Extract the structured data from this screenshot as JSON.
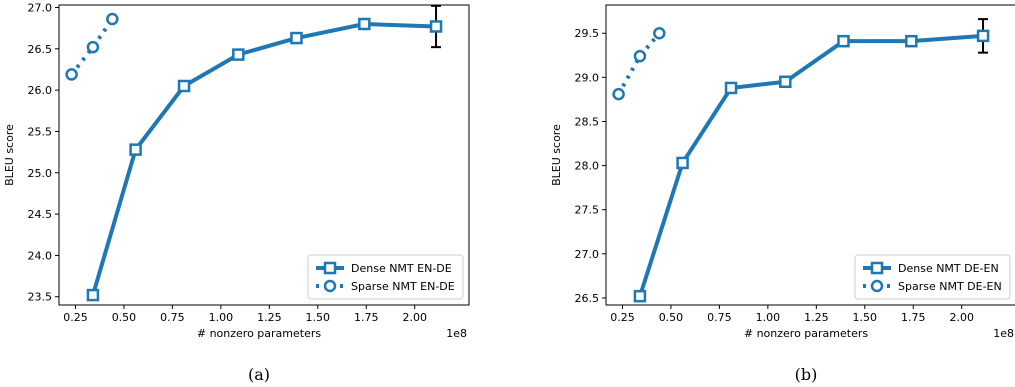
{
  "chart_data": [
    {
      "type": "line",
      "caption": "(a)",
      "xlabel": "# nonzero parameters",
      "ylabel": "BLEU score",
      "x_multiplier": "1e8",
      "xlim": [
        0.165,
        2.28
      ],
      "ylim": [
        23.4,
        27.03
      ],
      "xticks": [
        "0.25",
        "0.50",
        "0.75",
        "1.00",
        "1.25",
        "1.50",
        "1.75",
        "2.00"
      ],
      "xtick_values": [
        0.25,
        0.5,
        0.75,
        1.0,
        1.25,
        1.5,
        1.75,
        2.0
      ],
      "yticks": [
        "23.5",
        "24.0",
        "24.5",
        "25.0",
        "25.5",
        "26.0",
        "26.5",
        "27.0"
      ],
      "ytick_values": [
        23.5,
        24.0,
        24.5,
        25.0,
        25.5,
        26.0,
        26.5,
        27.0
      ],
      "legend_position": "lower-right",
      "series": [
        {
          "name": "Dense NMT EN-DE",
          "marker": "square",
          "style": "solid",
          "color": "#1f77b4",
          "x": [
            0.34,
            0.56,
            0.81,
            1.09,
            1.39,
            1.74,
            2.11
          ],
          "y": [
            23.52,
            25.28,
            26.05,
            26.43,
            26.63,
            26.8,
            26.77
          ],
          "error_bar": {
            "index": 6,
            "low": 26.52,
            "high": 27.02
          }
        },
        {
          "name": "Sparse NMT EN-DE",
          "marker": "circle",
          "style": "dotted",
          "color": "#1f77b4",
          "x": [
            0.23,
            0.34,
            0.44
          ],
          "y": [
            26.19,
            26.52,
            26.86
          ]
        }
      ]
    },
    {
      "type": "line",
      "caption": "(b)",
      "xlabel": "# nonzero parameters",
      "ylabel": "BLEU score",
      "x_multiplier": "1e8",
      "xlim": [
        0.165,
        2.28
      ],
      "ylim": [
        26.42,
        29.82
      ],
      "xticks": [
        "0.25",
        "0.50",
        "0.75",
        "1.00",
        "1.25",
        "1.50",
        "1.75",
        "2.00"
      ],
      "xtick_values": [
        0.25,
        0.5,
        0.75,
        1.0,
        1.25,
        1.5,
        1.75,
        2.0
      ],
      "yticks": [
        "26.5",
        "27.0",
        "27.5",
        "28.0",
        "28.5",
        "29.0",
        "29.5"
      ],
      "ytick_values": [
        26.5,
        27.0,
        27.5,
        28.0,
        28.5,
        29.0,
        29.5
      ],
      "legend_position": "lower-right",
      "series": [
        {
          "name": "Dense NMT DE-EN",
          "marker": "square",
          "style": "solid",
          "color": "#1f77b4",
          "x": [
            0.34,
            0.56,
            0.81,
            1.09,
            1.39,
            1.74,
            2.11
          ],
          "y": [
            26.52,
            28.03,
            28.88,
            28.95,
            29.41,
            29.41,
            29.47
          ],
          "error_bar": {
            "index": 6,
            "low": 29.28,
            "high": 29.66
          }
        },
        {
          "name": "Sparse NMT DE-EN",
          "marker": "circle",
          "style": "dotted",
          "color": "#1f77b4",
          "x": [
            0.23,
            0.34,
            0.44
          ],
          "y": [
            28.81,
            29.24,
            29.5
          ]
        }
      ]
    }
  ]
}
